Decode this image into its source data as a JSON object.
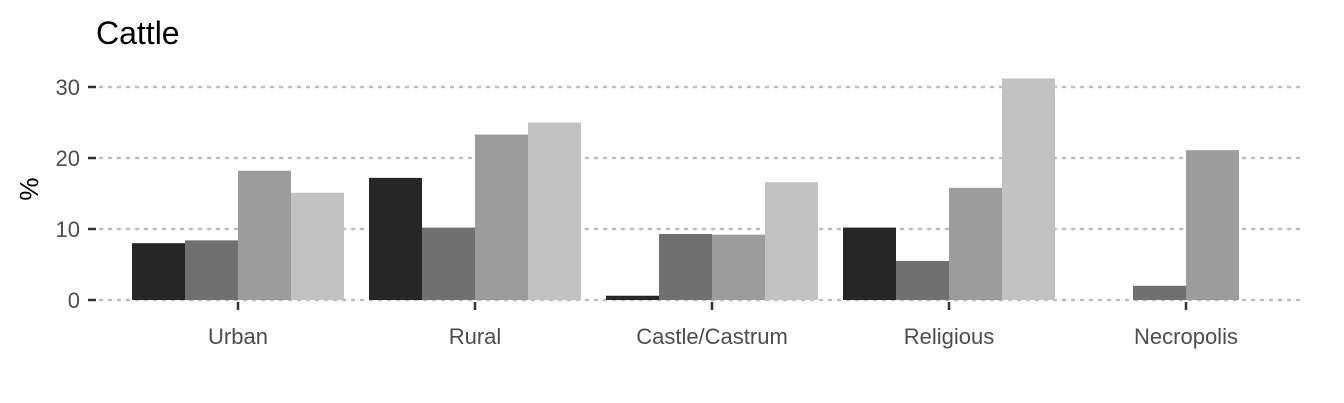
{
  "chart_data": {
    "type": "bar",
    "title": "Cattle",
    "xlabel": "",
    "ylabel": "%",
    "ylim": [
      0,
      32
    ],
    "yticks": [
      0,
      10,
      20,
      30
    ],
    "grid": true,
    "legend": "none",
    "categories": [
      "Urban",
      "Rural",
      "Castle/Castrum",
      "Religious",
      "Necropolis"
    ],
    "series": [
      {
        "color": "#262626",
        "values": [
          8.0,
          17.2,
          0.6,
          10.2,
          null
        ]
      },
      {
        "color": "#707070",
        "values": [
          8.4,
          10.2,
          9.3,
          5.5,
          2.0
        ]
      },
      {
        "color": "#9c9c9c",
        "values": [
          18.2,
          23.3,
          9.2,
          15.8,
          21.1
        ]
      },
      {
        "color": "#c2c2c2",
        "values": [
          15.1,
          25.0,
          16.6,
          31.2,
          null
        ]
      }
    ]
  }
}
